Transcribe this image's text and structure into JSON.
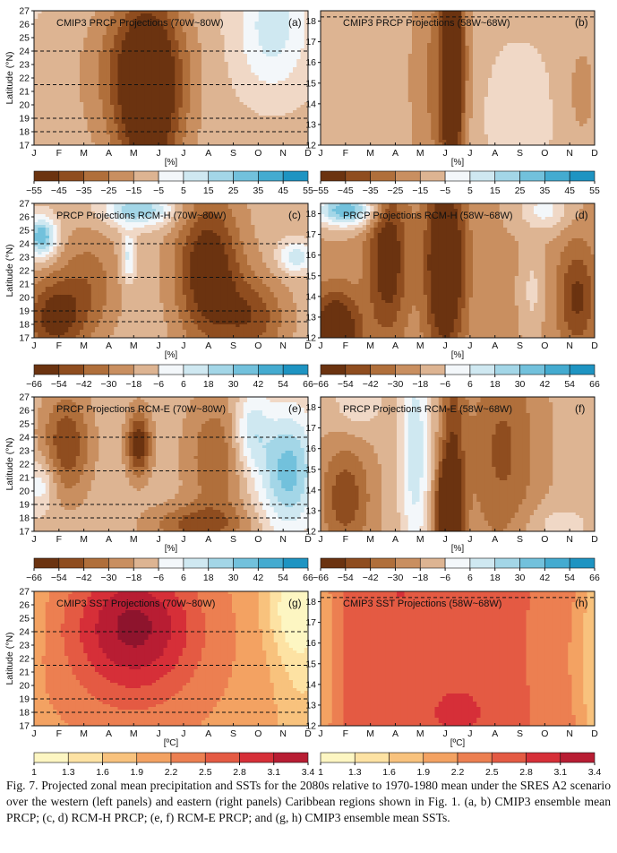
{
  "months": [
    "J",
    "F",
    "M",
    "A",
    "M",
    "J",
    "J",
    "A",
    "S",
    "O",
    "N",
    "D"
  ],
  "ylabel": "Latitude (°N)",
  "panels": [
    {
      "id": "a",
      "title": "CMIP3 PRCP Projections (70W~80W)",
      "tag": "(a)",
      "ymin": 17,
      "ymax": 27,
      "yticks": [
        17,
        18,
        19,
        20,
        21,
        22,
        23,
        24,
        25,
        26,
        27
      ],
      "dashes": [
        18,
        19,
        21.5,
        24
      ],
      "unit": "[%]",
      "scheme": "prcp",
      "dist": "dry-center"
    },
    {
      "id": "b",
      "title": "CMIP3 PRCP Projections (58W~68W)",
      "tag": "(b)",
      "ymin": 12,
      "ymax": 18.5,
      "yticks": [
        12,
        13,
        14,
        15,
        16,
        17,
        18
      ],
      "dashes": [
        18.2
      ],
      "unit": "[%]",
      "scheme": "prcp",
      "dist": "dry-narrow"
    },
    {
      "id": "c",
      "title": "PRCP Projections RCM-H (70W~80W)",
      "tag": "(c)",
      "ymin": 17,
      "ymax": 27,
      "yticks": [
        17,
        18,
        19,
        20,
        21,
        22,
        23,
        24,
        25,
        26,
        27
      ],
      "dashes": [
        18.2,
        19,
        21.5,
        24
      ],
      "unit": "[%]",
      "scheme": "prcp",
      "dist": "rcmh-w"
    },
    {
      "id": "d",
      "title": "PRCP Projections RCM-H (58W~68W)",
      "tag": "(d)",
      "ymin": 12,
      "ymax": 18.5,
      "yticks": [
        12,
        13,
        14,
        15,
        16,
        17,
        18
      ],
      "dashes": [],
      "unit": "[%]",
      "scheme": "prcp",
      "dist": "rcmh-e"
    },
    {
      "id": "e",
      "title": "PRCP Projections RCM-E (70W~80W)",
      "tag": "(e)",
      "ymin": 17,
      "ymax": 27,
      "yticks": [
        17,
        18,
        19,
        20,
        21,
        22,
        23,
        24,
        25,
        26,
        27
      ],
      "dashes": [
        18,
        19,
        21.5,
        24
      ],
      "unit": "[%]",
      "scheme": "prcp",
      "dist": "rcme-w"
    },
    {
      "id": "f",
      "title": "PRCP Projections RCM-E (58W~68W)",
      "tag": "(f)",
      "ymin": 12,
      "ymax": 18.5,
      "yticks": [
        12,
        13,
        14,
        15,
        16,
        17,
        18
      ],
      "dashes": [],
      "unit": "[%]",
      "scheme": "prcp",
      "dist": "rcme-e"
    },
    {
      "id": "g",
      "title": "CMIP3 SST Projections (70W~80W)",
      "tag": "(g)",
      "ymin": 17,
      "ymax": 27,
      "yticks": [
        17,
        18,
        19,
        20,
        21,
        22,
        23,
        24,
        25,
        26,
        27
      ],
      "dashes": [
        18,
        19,
        21.5,
        24
      ],
      "unit": "[ºC]",
      "scheme": "sst",
      "dist": "sst-w"
    },
    {
      "id": "h",
      "title": "CMIP3 SST Projections (58W~68W)",
      "tag": "(h)",
      "ymin": 12,
      "ymax": 18.5,
      "yticks": [
        12,
        13,
        14,
        15,
        16,
        17,
        18
      ],
      "dashes": [
        18.2
      ],
      "unit": "[ºC]",
      "scheme": "sst",
      "dist": "sst-e"
    }
  ],
  "colorbars": [
    {
      "row": 0,
      "labels": [
        "−55",
        "−45",
        "−35",
        "−25",
        "−15",
        "−5",
        "5",
        "15",
        "25",
        "35",
        "45",
        "55"
      ],
      "scheme": "prcp"
    },
    {
      "row": 1,
      "labels": [
        "−66",
        "−54",
        "−42",
        "−30",
        "−18",
        "−6",
        "6",
        "18",
        "30",
        "42",
        "54",
        "66"
      ],
      "scheme": "prcp"
    },
    {
      "row": 2,
      "labels": [
        "−66",
        "−54",
        "−42",
        "−30",
        "−18",
        "−6",
        "6",
        "18",
        "30",
        "42",
        "54",
        "66"
      ],
      "scheme": "prcp"
    },
    {
      "row": 3,
      "labels": [
        "1",
        "1.3",
        "1.6",
        "1.9",
        "2.2",
        "2.5",
        "2.8",
        "3.1",
        "3.4"
      ],
      "scheme": "sst"
    }
  ],
  "colors": {
    "prcp": [
      "#6b3310",
      "#8f4d1f",
      "#b06f3b",
      "#c98f60",
      "#ddb492",
      "#f0d8c6",
      "#f3f7fa",
      "#cfe8f1",
      "#a3d6e7",
      "#72c1dc",
      "#44abd0",
      "#1e94c2",
      "#0a7fb3"
    ],
    "sst": [
      "#fdf6c2",
      "#fde2a3",
      "#f8c27d",
      "#f3a262",
      "#ec7f51",
      "#e45a43",
      "#d62f38",
      "#b81d33",
      "#8e142d"
    ]
  },
  "caption": "Fig. 7. Projected zonal mean precipitation and SSTs for the 2080s relative to 1970-1980 mean under the SRES A2 scenario over the western (left panels) and eastern (right panels) Caribbean regions shown in Fig. 1. (a, b) CMIP3 ensemble mean PRCP; (c, d) RCM-H PRCP; (e, f) RCM-E PRCP; and (g, h) CMIP3 ensemble mean SSTs."
}
